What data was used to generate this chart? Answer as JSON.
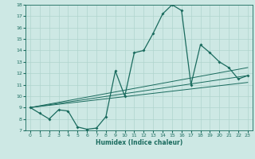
{
  "xlabel": "Humidex (Indice chaleur)",
  "bg_color": "#cde8e4",
  "grid_color": "#b0d4ce",
  "line_color": "#1a6b5e",
  "xlim": [
    -0.5,
    23.5
  ],
  "ylim": [
    7,
    18
  ],
  "xticks": [
    0,
    1,
    2,
    3,
    4,
    5,
    6,
    7,
    8,
    9,
    10,
    11,
    12,
    13,
    14,
    15,
    16,
    17,
    18,
    19,
    20,
    21,
    22,
    23
  ],
  "yticks": [
    7,
    8,
    9,
    10,
    11,
    12,
    13,
    14,
    15,
    16,
    17,
    18
  ],
  "main_line_x": [
    0,
    1,
    2,
    3,
    4,
    5,
    6,
    7,
    8,
    9,
    10,
    11,
    12,
    13,
    14,
    15,
    16,
    17,
    18,
    19,
    20,
    21,
    22,
    23
  ],
  "main_line_y": [
    9,
    8.5,
    8,
    8.8,
    8.7,
    7.3,
    7.1,
    7.2,
    8.2,
    12.2,
    10,
    13.8,
    14,
    15.5,
    17.2,
    18,
    17.5,
    11,
    14.5,
    13.8,
    13,
    12.5,
    11.5,
    11.8
  ],
  "reg_lines": [
    [
      [
        0,
        23
      ],
      [
        9,
        12.5
      ]
    ],
    [
      [
        0,
        23
      ],
      [
        9,
        11.8
      ]
    ],
    [
      [
        0,
        23
      ],
      [
        9,
        11.2
      ]
    ]
  ]
}
